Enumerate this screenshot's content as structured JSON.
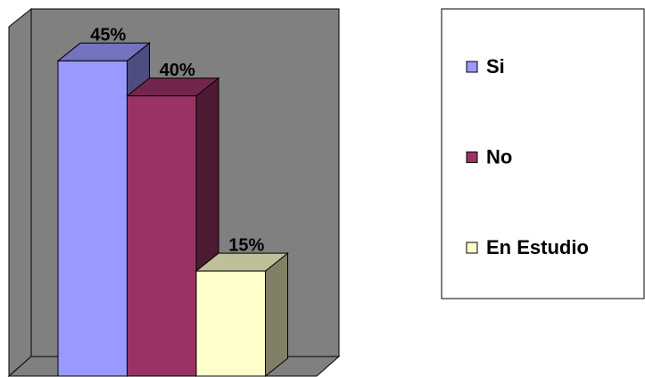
{
  "chart_data": {
    "type": "bar3d",
    "categories": [
      null
    ],
    "series": [
      {
        "name": "Si",
        "color": "#9999ff",
        "values": [
          45
        ],
        "value_labels": [
          "45%"
        ]
      },
      {
        "name": "No",
        "color": "#993366",
        "values": [
          40
        ],
        "value_labels": [
          "40%"
        ]
      },
      {
        "name": "En Estudio",
        "color": "#ffffcc",
        "values": [
          15
        ],
        "value_labels": [
          "15%"
        ]
      }
    ],
    "ylim": [
      0,
      50
    ],
    "grid": false,
    "legend": "right"
  }
}
